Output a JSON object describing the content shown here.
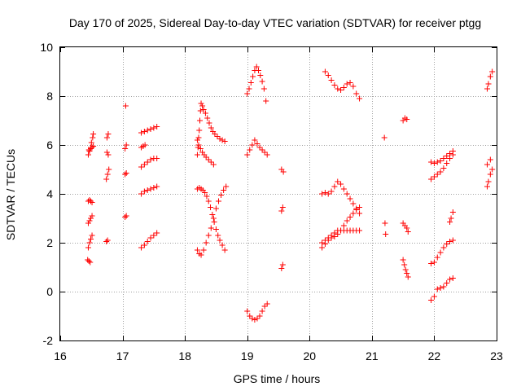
{
  "chart_data": {
    "type": "scatter",
    "title": "Day 170 of 2025, Sidereal Day-to-day VTEC variation (SDTVAR) for receiver ptgg",
    "xlabel": "GPS time / hours",
    "ylabel": "SDTVAR / TECUs",
    "xlim": [
      16,
      23
    ],
    "ylim": [
      -2,
      10
    ],
    "x_ticks": [
      16,
      17,
      18,
      19,
      20,
      21,
      22,
      23
    ],
    "x_tick_labels": [
      "16",
      "17",
      "18",
      "19",
      "20",
      "21",
      "22",
      "23"
    ],
    "y_ticks": [
      -2,
      0,
      2,
      4,
      6,
      8,
      10
    ],
    "y_tick_labels": [
      "-2",
      "0",
      "2",
      "4",
      "6",
      "8",
      "10"
    ],
    "grid": true,
    "marker": "plus",
    "color": "#ff0000",
    "series": [
      {
        "name": "SDTVAR",
        "points": [
          [
            16.45,
            5.6
          ],
          [
            16.47,
            5.75
          ],
          [
            16.49,
            5.9
          ],
          [
            16.5,
            6.1
          ],
          [
            16.52,
            6.3
          ],
          [
            16.53,
            6.45
          ],
          [
            16.46,
            5.8
          ],
          [
            16.49,
            5.85
          ],
          [
            16.51,
            5.9
          ],
          [
            16.53,
            5.95
          ],
          [
            16.45,
            3.7
          ],
          [
            16.47,
            3.75
          ],
          [
            16.49,
            3.7
          ],
          [
            16.51,
            3.65
          ],
          [
            16.45,
            2.8
          ],
          [
            16.47,
            2.9
          ],
          [
            16.49,
            3.0
          ],
          [
            16.51,
            3.1
          ],
          [
            16.45,
            1.8
          ],
          [
            16.47,
            2.0
          ],
          [
            16.49,
            2.15
          ],
          [
            16.51,
            2.3
          ],
          [
            16.44,
            1.3
          ],
          [
            16.46,
            1.25
          ],
          [
            16.48,
            1.2
          ],
          [
            16.75,
            6.3
          ],
          [
            16.77,
            6.45
          ],
          [
            16.75,
            5.7
          ],
          [
            16.77,
            5.6
          ],
          [
            16.74,
            4.6
          ],
          [
            16.76,
            4.8
          ],
          [
            16.78,
            5.0
          ],
          [
            16.74,
            2.05
          ],
          [
            16.76,
            2.1
          ],
          [
            17.05,
            7.6
          ],
          [
            17.04,
            5.85
          ],
          [
            17.06,
            6.0
          ],
          [
            17.04,
            4.8
          ],
          [
            17.06,
            4.85
          ],
          [
            17.04,
            3.05
          ],
          [
            17.06,
            3.1
          ],
          [
            17.3,
            6.5
          ],
          [
            17.35,
            6.55
          ],
          [
            17.4,
            6.6
          ],
          [
            17.45,
            6.65
          ],
          [
            17.5,
            6.7
          ],
          [
            17.55,
            6.75
          ],
          [
            17.3,
            5.9
          ],
          [
            17.33,
            5.95
          ],
          [
            17.36,
            6.0
          ],
          [
            17.3,
            5.1
          ],
          [
            17.35,
            5.2
          ],
          [
            17.4,
            5.3
          ],
          [
            17.45,
            5.4
          ],
          [
            17.5,
            5.45
          ],
          [
            17.55,
            5.45
          ],
          [
            17.3,
            4.0
          ],
          [
            17.35,
            4.1
          ],
          [
            17.4,
            4.15
          ],
          [
            17.45,
            4.2
          ],
          [
            17.5,
            4.25
          ],
          [
            17.55,
            4.3
          ],
          [
            17.3,
            1.8
          ],
          [
            17.35,
            1.9
          ],
          [
            17.4,
            2.05
          ],
          [
            17.45,
            2.2
          ],
          [
            17.5,
            2.3
          ],
          [
            17.55,
            2.4
          ],
          [
            18.2,
            5.6
          ],
          [
            18.21,
            5.9
          ],
          [
            18.22,
            6.3
          ],
          [
            18.23,
            6.6
          ],
          [
            18.24,
            7.0
          ],
          [
            18.25,
            7.4
          ],
          [
            18.26,
            7.7
          ],
          [
            18.28,
            7.6
          ],
          [
            18.3,
            7.45
          ],
          [
            18.33,
            7.3
          ],
          [
            18.36,
            7.1
          ],
          [
            18.39,
            6.9
          ],
          [
            18.42,
            6.7
          ],
          [
            18.45,
            6.55
          ],
          [
            18.48,
            6.45
          ],
          [
            18.52,
            6.35
          ],
          [
            18.56,
            6.25
          ],
          [
            18.6,
            6.2
          ],
          [
            18.64,
            6.15
          ],
          [
            18.2,
            6.2
          ],
          [
            18.22,
            6.0
          ],
          [
            18.25,
            5.85
          ],
          [
            18.28,
            5.7
          ],
          [
            18.31,
            5.6
          ],
          [
            18.34,
            5.5
          ],
          [
            18.38,
            5.4
          ],
          [
            18.42,
            5.3
          ],
          [
            18.46,
            5.2
          ],
          [
            18.2,
            4.2
          ],
          [
            18.23,
            4.25
          ],
          [
            18.26,
            4.2
          ],
          [
            18.29,
            4.15
          ],
          [
            18.32,
            4.05
          ],
          [
            18.35,
            3.9
          ],
          [
            18.38,
            3.7
          ],
          [
            18.41,
            3.45
          ],
          [
            18.44,
            3.15
          ],
          [
            18.47,
            2.85
          ],
          [
            18.5,
            2.55
          ],
          [
            18.53,
            2.3
          ],
          [
            18.56,
            2.1
          ],
          [
            18.6,
            1.9
          ],
          [
            18.64,
            1.7
          ],
          [
            18.2,
            1.7
          ],
          [
            18.23,
            1.55
          ],
          [
            18.26,
            1.5
          ],
          [
            18.3,
            1.7
          ],
          [
            18.34,
            2.0
          ],
          [
            18.38,
            2.3
          ],
          [
            18.42,
            2.6
          ],
          [
            18.46,
            3.0
          ],
          [
            18.5,
            3.4
          ],
          [
            18.54,
            3.7
          ],
          [
            18.58,
            3.95
          ],
          [
            18.62,
            4.15
          ],
          [
            18.66,
            4.3
          ],
          [
            19.0,
            8.1
          ],
          [
            19.03,
            8.3
          ],
          [
            19.06,
            8.55
          ],
          [
            19.09,
            8.8
          ],
          [
            19.12,
            9.05
          ],
          [
            19.15,
            9.2
          ],
          [
            19.18,
            9.05
          ],
          [
            19.21,
            8.85
          ],
          [
            19.24,
            8.6
          ],
          [
            19.27,
            8.3
          ],
          [
            19.3,
            7.8
          ],
          [
            19.0,
            5.6
          ],
          [
            19.04,
            5.8
          ],
          [
            19.08,
            6.0
          ],
          [
            19.12,
            6.2
          ],
          [
            19.16,
            6.05
          ],
          [
            19.2,
            5.9
          ],
          [
            19.24,
            5.8
          ],
          [
            19.28,
            5.7
          ],
          [
            19.32,
            5.6
          ],
          [
            19.0,
            -0.8
          ],
          [
            19.04,
            -1.0
          ],
          [
            19.08,
            -1.1
          ],
          [
            19.12,
            -1.15
          ],
          [
            19.16,
            -1.1
          ],
          [
            19.2,
            -1.0
          ],
          [
            19.24,
            -0.8
          ],
          [
            19.28,
            -0.6
          ],
          [
            19.32,
            -0.5
          ],
          [
            19.55,
            5.0
          ],
          [
            19.58,
            4.9
          ],
          [
            19.55,
            3.3
          ],
          [
            19.57,
            3.45
          ],
          [
            19.55,
            0.95
          ],
          [
            19.57,
            1.1
          ],
          [
            20.25,
            9.0
          ],
          [
            20.3,
            8.85
          ],
          [
            20.35,
            8.65
          ],
          [
            20.4,
            8.45
          ],
          [
            20.45,
            8.3
          ],
          [
            20.5,
            8.25
          ],
          [
            20.55,
            8.35
          ],
          [
            20.6,
            8.5
          ],
          [
            20.65,
            8.55
          ],
          [
            20.7,
            8.4
          ],
          [
            20.75,
            8.1
          ],
          [
            20.8,
            7.9
          ],
          [
            20.2,
            4.0
          ],
          [
            20.25,
            4.05
          ],
          [
            20.3,
            4.0
          ],
          [
            20.35,
            4.1
          ],
          [
            20.4,
            4.3
          ],
          [
            20.45,
            4.5
          ],
          [
            20.5,
            4.4
          ],
          [
            20.55,
            4.2
          ],
          [
            20.6,
            4.0
          ],
          [
            20.65,
            3.8
          ],
          [
            20.7,
            3.6
          ],
          [
            20.75,
            3.4
          ],
          [
            20.8,
            3.2
          ],
          [
            20.2,
            2.0
          ],
          [
            20.25,
            2.1
          ],
          [
            20.3,
            2.2
          ],
          [
            20.35,
            2.3
          ],
          [
            20.4,
            2.4
          ],
          [
            20.45,
            2.5
          ],
          [
            20.5,
            2.5
          ],
          [
            20.55,
            2.5
          ],
          [
            20.6,
            2.5
          ],
          [
            20.65,
            2.5
          ],
          [
            20.7,
            2.5
          ],
          [
            20.75,
            2.5
          ],
          [
            20.8,
            2.5
          ],
          [
            20.2,
            1.8
          ],
          [
            20.25,
            1.95
          ],
          [
            20.3,
            2.1
          ],
          [
            20.35,
            2.2
          ],
          [
            20.4,
            2.25
          ],
          [
            20.45,
            2.35
          ],
          [
            20.5,
            2.5
          ],
          [
            20.55,
            2.7
          ],
          [
            20.6,
            2.9
          ],
          [
            20.65,
            3.05
          ],
          [
            20.7,
            3.2
          ],
          [
            20.75,
            3.35
          ],
          [
            20.8,
            3.45
          ],
          [
            21.2,
            6.3
          ],
          [
            21.21,
            2.8
          ],
          [
            21.22,
            2.35
          ],
          [
            21.5,
            7.0
          ],
          [
            21.53,
            7.1
          ],
          [
            21.56,
            7.05
          ],
          [
            21.5,
            2.8
          ],
          [
            21.53,
            2.7
          ],
          [
            21.56,
            2.6
          ],
          [
            21.58,
            2.45
          ],
          [
            21.5,
            1.3
          ],
          [
            21.52,
            1.1
          ],
          [
            21.54,
            0.9
          ],
          [
            21.56,
            0.75
          ],
          [
            21.58,
            0.6
          ],
          [
            21.95,
            5.3
          ],
          [
            22.0,
            5.25
          ],
          [
            22.05,
            5.3
          ],
          [
            22.1,
            5.35
          ],
          [
            22.15,
            5.45
          ],
          [
            22.2,
            5.55
          ],
          [
            22.25,
            5.65
          ],
          [
            22.3,
            5.75
          ],
          [
            21.95,
            4.6
          ],
          [
            22.0,
            4.7
          ],
          [
            22.05,
            4.8
          ],
          [
            22.1,
            4.9
          ],
          [
            22.15,
            5.05
          ],
          [
            22.2,
            5.25
          ],
          [
            22.25,
            5.45
          ],
          [
            22.3,
            5.6
          ],
          [
            22.25,
            2.85
          ],
          [
            22.27,
            3.0
          ],
          [
            22.3,
            3.25
          ],
          [
            21.95,
            1.15
          ],
          [
            22.0,
            1.2
          ],
          [
            22.05,
            1.4
          ],
          [
            22.1,
            1.6
          ],
          [
            22.15,
            1.8
          ],
          [
            22.2,
            1.95
          ],
          [
            22.25,
            2.05
          ],
          [
            22.3,
            2.1
          ],
          [
            21.95,
            -0.35
          ],
          [
            22.0,
            -0.2
          ],
          [
            22.05,
            0.1
          ],
          [
            22.1,
            0.15
          ],
          [
            22.15,
            0.2
          ],
          [
            22.2,
            0.35
          ],
          [
            22.25,
            0.5
          ],
          [
            22.3,
            0.55
          ],
          [
            22.85,
            8.3
          ],
          [
            22.87,
            8.5
          ],
          [
            22.9,
            8.8
          ],
          [
            22.93,
            9.0
          ],
          [
            22.85,
            4.3
          ],
          [
            22.87,
            4.5
          ],
          [
            22.9,
            4.8
          ],
          [
            22.93,
            5.0
          ],
          [
            22.85,
            5.2
          ],
          [
            22.9,
            5.4
          ]
        ]
      }
    ]
  }
}
